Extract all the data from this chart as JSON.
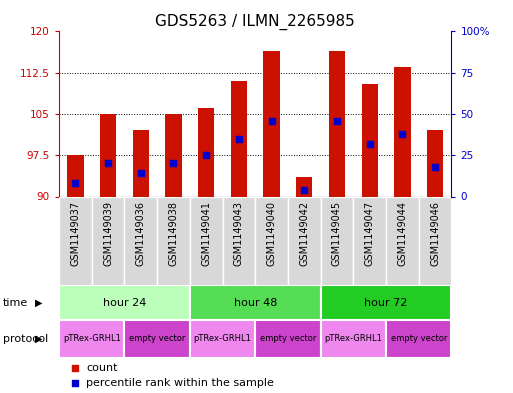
{
  "title": "GDS5263 / ILMN_2265985",
  "samples": [
    "GSM1149037",
    "GSM1149039",
    "GSM1149036",
    "GSM1149038",
    "GSM1149041",
    "GSM1149043",
    "GSM1149040",
    "GSM1149042",
    "GSM1149045",
    "GSM1149047",
    "GSM1149044",
    "GSM1149046"
  ],
  "count_values": [
    97.5,
    105.0,
    102.0,
    105.0,
    106.0,
    111.0,
    116.5,
    93.5,
    116.5,
    110.5,
    113.5,
    102.0
  ],
  "percentile_values": [
    8.0,
    20.0,
    14.0,
    20.0,
    25.0,
    35.0,
    46.0,
    4.0,
    46.0,
    32.0,
    38.0,
    18.0
  ],
  "ymin": 90,
  "ymax": 120,
  "yticks": [
    90,
    97.5,
    105,
    112.5,
    120
  ],
  "ytick_labels": [
    "90",
    "97.5",
    "105",
    "112.5",
    "120"
  ],
  "right_yticks": [
    0,
    25,
    50,
    75,
    100
  ],
  "right_ytick_labels": [
    "0",
    "25",
    "50",
    "75",
    "100%"
  ],
  "time_groups": [
    {
      "label": "hour 24",
      "start": 0,
      "end": 4,
      "color": "#bbffbb"
    },
    {
      "label": "hour 48",
      "start": 4,
      "end": 8,
      "color": "#55dd55"
    },
    {
      "label": "hour 72",
      "start": 8,
      "end": 12,
      "color": "#22cc22"
    }
  ],
  "protocol_groups": [
    {
      "label": "pTRex-GRHL1",
      "start": 0,
      "end": 2,
      "color": "#ee88ee"
    },
    {
      "label": "empty vector",
      "start": 2,
      "end": 4,
      "color": "#cc44cc"
    },
    {
      "label": "pTRex-GRHL1",
      "start": 4,
      "end": 6,
      "color": "#ee88ee"
    },
    {
      "label": "empty vector",
      "start": 6,
      "end": 8,
      "color": "#cc44cc"
    },
    {
      "label": "pTRex-GRHL1",
      "start": 8,
      "end": 10,
      "color": "#ee88ee"
    },
    {
      "label": "empty vector",
      "start": 10,
      "end": 12,
      "color": "#cc44cc"
    }
  ],
  "bar_color": "#cc1100",
  "dot_color": "#0000cc",
  "bar_width": 0.5,
  "dot_size": 18,
  "grid_color": "#000000",
  "background_color": "#ffffff",
  "left_axis_color": "#cc0000",
  "right_axis_color": "#0000cc",
  "legend_count_color": "#cc1100",
  "legend_dot_color": "#0000cc",
  "title_fontsize": 11,
  "tick_fontsize": 7.5,
  "label_fontsize": 8,
  "sample_label_fontsize": 7
}
